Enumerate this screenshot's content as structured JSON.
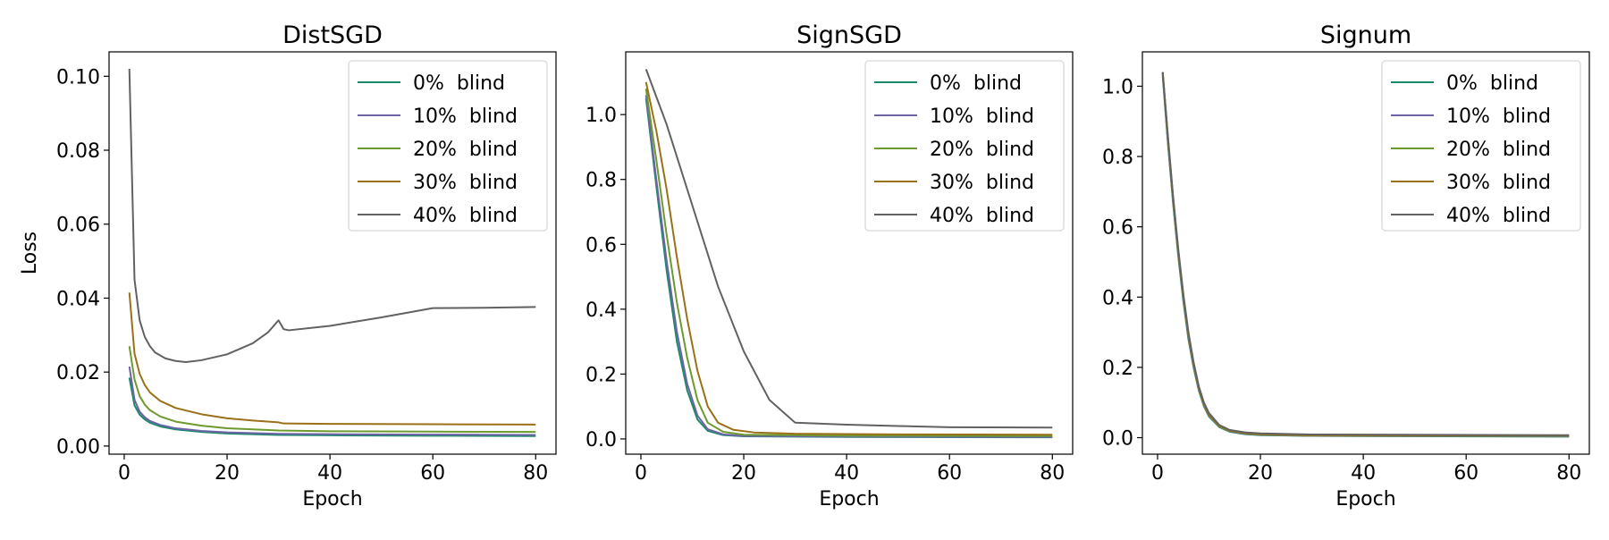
{
  "chart_data": [
    {
      "type": "line",
      "title": "DistSGD",
      "xlabel": "Epoch",
      "ylabel": "Loss",
      "xlim": [
        -2.95,
        83.95
      ],
      "ylim": [
        -0.0022,
        0.1066
      ],
      "xticks": [
        0,
        20,
        40,
        60,
        80
      ],
      "xtick_labels": [
        "0",
        "20",
        "40",
        "60",
        "80"
      ],
      "yticks": [
        0,
        0.02,
        0.04,
        0.06,
        0.08,
        0.1
      ],
      "ytick_labels": [
        "0.00",
        "0.02",
        "0.04",
        "0.06",
        "0.08",
        "0.10"
      ],
      "grid": false,
      "legend": "top-right",
      "series": [
        {
          "name": "0%  blind",
          "color": "#1a8a6a",
          "points": [
            [
              1,
              0.0185
            ],
            [
              2,
              0.011
            ],
            [
              3,
              0.0085
            ],
            [
              4,
              0.0072
            ],
            [
              5,
              0.0063
            ],
            [
              7,
              0.0053
            ],
            [
              10,
              0.0045
            ],
            [
              15,
              0.0038
            ],
            [
              20,
              0.0034
            ],
            [
              30,
              0.003
            ],
            [
              40,
              0.0029
            ],
            [
              60,
              0.0028
            ],
            [
              80,
              0.0027
            ]
          ]
        },
        {
          "name": "10%  blind",
          "color": "#6d64a8",
          "points": [
            [
              1,
              0.0215
            ],
            [
              2,
              0.0125
            ],
            [
              3,
              0.0093
            ],
            [
              4,
              0.0078
            ],
            [
              5,
              0.0068
            ],
            [
              7,
              0.0057
            ],
            [
              10,
              0.0048
            ],
            [
              15,
              0.0041
            ],
            [
              20,
              0.0037
            ],
            [
              30,
              0.0033
            ],
            [
              40,
              0.0032
            ],
            [
              60,
              0.0031
            ],
            [
              80,
              0.003
            ]
          ]
        },
        {
          "name": "20%  blind",
          "color": "#6d9a2e",
          "points": [
            [
              1,
              0.027
            ],
            [
              2,
              0.018
            ],
            [
              3,
              0.0135
            ],
            [
              4,
              0.0112
            ],
            [
              5,
              0.0097
            ],
            [
              7,
              0.008
            ],
            [
              10,
              0.0066
            ],
            [
              15,
              0.0055
            ],
            [
              20,
              0.0048
            ],
            [
              30,
              0.0042
            ],
            [
              40,
              0.004
            ],
            [
              60,
              0.0039
            ],
            [
              80,
              0.0038
            ]
          ]
        },
        {
          "name": "30%  blind",
          "color": "#9a7119",
          "points": [
            [
              1,
              0.0415
            ],
            [
              2,
              0.025
            ],
            [
              3,
              0.0195
            ],
            [
              4,
              0.0165
            ],
            [
              5,
              0.0145
            ],
            [
              7,
              0.0122
            ],
            [
              10,
              0.0103
            ],
            [
              15,
              0.0086
            ],
            [
              20,
              0.0075
            ],
            [
              25,
              0.0069
            ],
            [
              30,
              0.0064
            ],
            [
              31,
              0.0061
            ],
            [
              40,
              0.006
            ],
            [
              60,
              0.0059
            ],
            [
              80,
              0.0058
            ]
          ]
        },
        {
          "name": "40%  blind",
          "color": "#616161",
          "points": [
            [
              1,
              0.102
            ],
            [
              2,
              0.045
            ],
            [
              3,
              0.034
            ],
            [
              4,
              0.0295
            ],
            [
              5,
              0.027
            ],
            [
              6,
              0.0253
            ],
            [
              8,
              0.0237
            ],
            [
              10,
              0.023
            ],
            [
              12,
              0.0227
            ],
            [
              15,
              0.0232
            ],
            [
              20,
              0.0248
            ],
            [
              25,
              0.0278
            ],
            [
              28,
              0.0308
            ],
            [
              30,
              0.034
            ],
            [
              31,
              0.0316
            ],
            [
              32,
              0.0313
            ],
            [
              40,
              0.0325
            ],
            [
              50,
              0.0348
            ],
            [
              60,
              0.0373
            ],
            [
              70,
              0.0374
            ],
            [
              80,
              0.0376
            ]
          ]
        }
      ]
    },
    {
      "type": "line",
      "title": "SignSGD",
      "xlabel": "Epoch",
      "ylabel": "",
      "xlim": [
        -2.95,
        83.95
      ],
      "ylim": [
        -0.047,
        1.1934
      ],
      "xticks": [
        0,
        20,
        40,
        60,
        80
      ],
      "xtick_labels": [
        "0",
        "20",
        "40",
        "60",
        "80"
      ],
      "yticks": [
        0,
        0.2,
        0.4,
        0.6,
        0.8,
        1.0
      ],
      "ytick_labels": [
        "0.0",
        "0.2",
        "0.4",
        "0.6",
        "0.8",
        "1.0"
      ],
      "grid": false,
      "legend": "top-right",
      "series": [
        {
          "name": "0%  blind",
          "color": "#1a8a6a",
          "points": [
            [
              1,
              1.05
            ],
            [
              3,
              0.78
            ],
            [
              5,
              0.52
            ],
            [
              7,
              0.3
            ],
            [
              9,
              0.15
            ],
            [
              11,
              0.06
            ],
            [
              13,
              0.025
            ],
            [
              16,
              0.012
            ],
            [
              20,
              0.008
            ],
            [
              40,
              0.006
            ],
            [
              80,
              0.005
            ]
          ]
        },
        {
          "name": "10%  blind",
          "color": "#6d64a8",
          "points": [
            [
              1,
              1.06
            ],
            [
              3,
              0.8
            ],
            [
              5,
              0.55
            ],
            [
              7,
              0.33
            ],
            [
              9,
              0.17
            ],
            [
              11,
              0.072
            ],
            [
              13,
              0.03
            ],
            [
              16,
              0.014
            ],
            [
              20,
              0.009
            ],
            [
              40,
              0.007
            ],
            [
              80,
              0.006
            ]
          ]
        },
        {
          "name": "20%  blind",
          "color": "#6d9a2e",
          "points": [
            [
              1,
              1.08
            ],
            [
              3,
              0.86
            ],
            [
              5,
              0.63
            ],
            [
              7,
              0.42
            ],
            [
              9,
              0.25
            ],
            [
              11,
              0.12
            ],
            [
              13,
              0.05
            ],
            [
              16,
              0.022
            ],
            [
              20,
              0.013
            ],
            [
              40,
              0.01
            ],
            [
              80,
              0.009
            ]
          ]
        },
        {
          "name": "30%  blind",
          "color": "#9a7119",
          "points": [
            [
              1,
              1.1
            ],
            [
              3,
              0.95
            ],
            [
              5,
              0.77
            ],
            [
              7,
              0.56
            ],
            [
              9,
              0.37
            ],
            [
              11,
              0.21
            ],
            [
              13,
              0.1
            ],
            [
              15,
              0.05
            ],
            [
              18,
              0.028
            ],
            [
              22,
              0.02
            ],
            [
              30,
              0.016
            ],
            [
              50,
              0.014
            ],
            [
              80,
              0.013
            ]
          ]
        },
        {
          "name": "40%  blind",
          "color": "#616161",
          "points": [
            [
              1,
              1.14
            ],
            [
              5,
              0.97
            ],
            [
              10,
              0.72
            ],
            [
              15,
              0.47
            ],
            [
              20,
              0.27
            ],
            [
              25,
              0.12
            ],
            [
              30,
              0.05
            ],
            [
              40,
              0.044
            ],
            [
              50,
              0.04
            ],
            [
              60,
              0.036
            ],
            [
              80,
              0.035
            ]
          ]
        }
      ]
    },
    {
      "type": "line",
      "title": "Signum",
      "xlabel": "Epoch",
      "ylabel": "",
      "xlim": [
        -2.95,
        83.95
      ],
      "ylim": [
        -0.047,
        1.0978
      ],
      "xticks": [
        0,
        20,
        40,
        60,
        80
      ],
      "xtick_labels": [
        "0",
        "20",
        "40",
        "60",
        "80"
      ],
      "yticks": [
        0,
        0.2,
        0.4,
        0.6,
        0.8,
        1.0
      ],
      "ytick_labels": [
        "0.0",
        "0.2",
        "0.4",
        "0.6",
        "0.8",
        "1.0"
      ],
      "grid": false,
      "legend": "top-right",
      "series": [
        {
          "name": "0%  blind",
          "color": "#1a8a6a",
          "points": [
            [
              1,
              1.03
            ],
            [
              2,
              0.84
            ],
            [
              3,
              0.67
            ],
            [
              4,
              0.52
            ],
            [
              5,
              0.39
            ],
            [
              6,
              0.28
            ],
            [
              7,
              0.2
            ],
            [
              8,
              0.135
            ],
            [
              9,
              0.09
            ],
            [
              10,
              0.06
            ],
            [
              12,
              0.03
            ],
            [
              14,
              0.017
            ],
            [
              17,
              0.01
            ],
            [
              20,
              0.007
            ],
            [
              30,
              0.005
            ],
            [
              80,
              0.003
            ]
          ]
        },
        {
          "name": "10%  blind",
          "color": "#6d64a8",
          "points": [
            [
              1,
              1.035
            ],
            [
              2,
              0.845
            ],
            [
              3,
              0.675
            ],
            [
              4,
              0.525
            ],
            [
              5,
              0.395
            ],
            [
              6,
              0.285
            ],
            [
              7,
              0.203
            ],
            [
              8,
              0.138
            ],
            [
              9,
              0.092
            ],
            [
              10,
              0.062
            ],
            [
              12,
              0.031
            ],
            [
              14,
              0.018
            ],
            [
              17,
              0.011
            ],
            [
              20,
              0.008
            ],
            [
              30,
              0.005
            ],
            [
              80,
              0.004
            ]
          ]
        },
        {
          "name": "20%  blind",
          "color": "#6d9a2e",
          "points": [
            [
              1,
              1.04
            ],
            [
              2,
              0.85
            ],
            [
              3,
              0.68
            ],
            [
              4,
              0.53
            ],
            [
              5,
              0.4
            ],
            [
              6,
              0.29
            ],
            [
              7,
              0.206
            ],
            [
              8,
              0.14
            ],
            [
              9,
              0.094
            ],
            [
              10,
              0.064
            ],
            [
              12,
              0.032
            ],
            [
              14,
              0.019
            ],
            [
              17,
              0.012
            ],
            [
              20,
              0.009
            ],
            [
              30,
              0.006
            ],
            [
              80,
              0.005
            ]
          ]
        },
        {
          "name": "30%  blind",
          "color": "#9a7119",
          "points": [
            [
              1,
              1.04
            ],
            [
              2,
              0.855
            ],
            [
              3,
              0.685
            ],
            [
              4,
              0.535
            ],
            [
              5,
              0.405
            ],
            [
              6,
              0.295
            ],
            [
              7,
              0.21
            ],
            [
              8,
              0.143
            ],
            [
              9,
              0.096
            ],
            [
              10,
              0.066
            ],
            [
              12,
              0.034
            ],
            [
              14,
              0.02
            ],
            [
              17,
              0.013
            ],
            [
              20,
              0.01
            ],
            [
              30,
              0.007
            ],
            [
              80,
              0.006
            ]
          ]
        },
        {
          "name": "40%  blind",
          "color": "#616161",
          "points": [
            [
              1,
              1.04
            ],
            [
              2,
              0.86
            ],
            [
              3,
              0.69
            ],
            [
              4,
              0.54
            ],
            [
              5,
              0.41
            ],
            [
              6,
              0.3
            ],
            [
              7,
              0.215
            ],
            [
              8,
              0.147
            ],
            [
              9,
              0.1
            ],
            [
              10,
              0.07
            ],
            [
              12,
              0.036
            ],
            [
              14,
              0.022
            ],
            [
              17,
              0.015
            ],
            [
              20,
              0.012
            ],
            [
              30,
              0.009
            ],
            [
              80,
              0.007
            ]
          ]
        }
      ]
    }
  ]
}
